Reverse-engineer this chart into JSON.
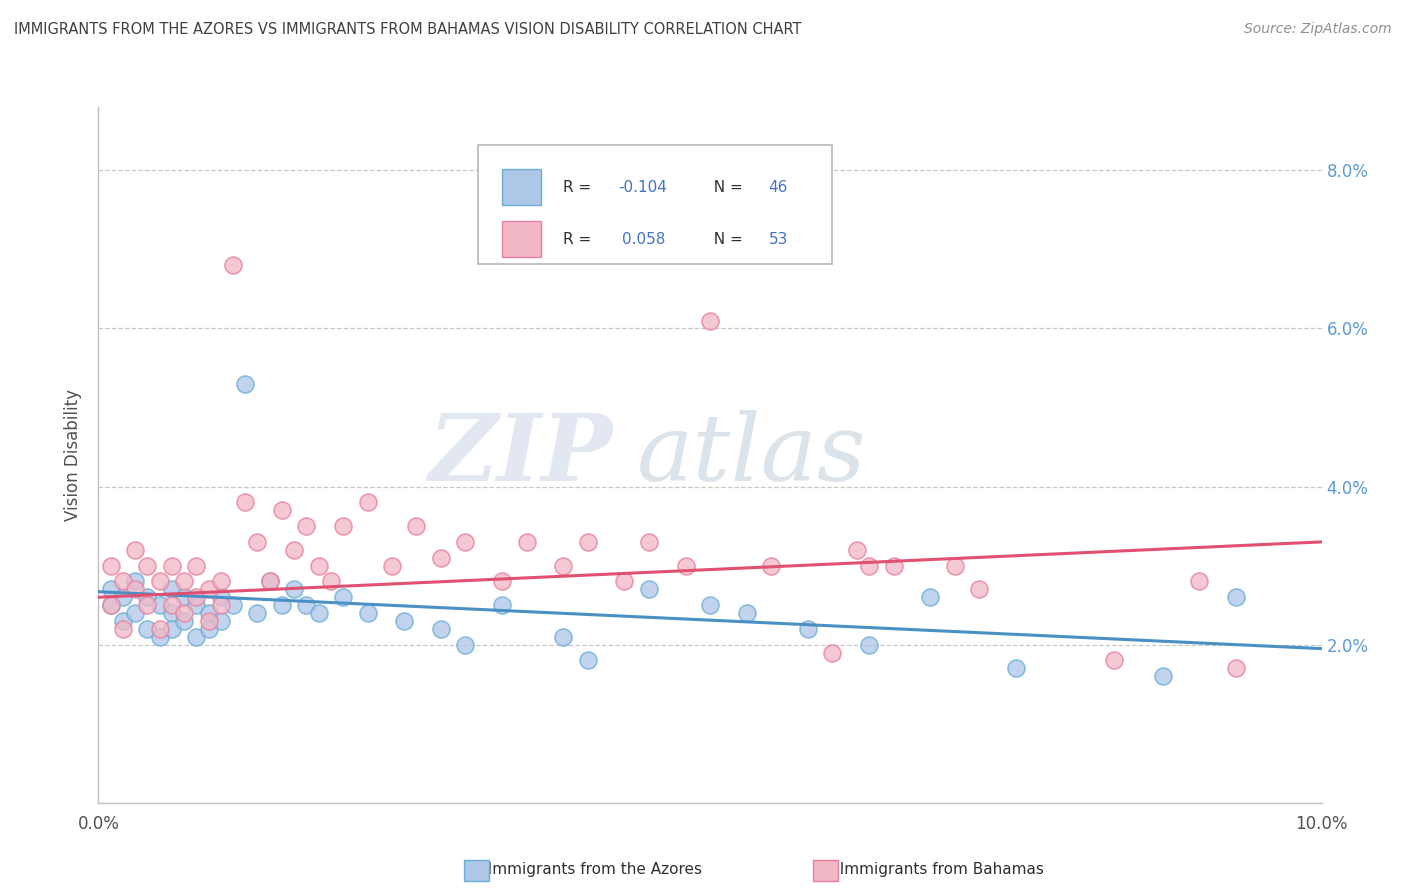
{
  "title": "IMMIGRANTS FROM THE AZORES VS IMMIGRANTS FROM BAHAMAS VISION DISABILITY CORRELATION CHART",
  "source": "Source: ZipAtlas.com",
  "ylabel": "Vision Disability",
  "xlim": [
    0.0,
    0.1
  ],
  "ylim": [
    0.0,
    0.088
  ],
  "yticks": [
    0.02,
    0.04,
    0.06,
    0.08
  ],
  "ytick_labels": [
    "2.0%",
    "4.0%",
    "6.0%",
    "8.0%"
  ],
  "legend_r_blue": "-0.104",
  "legend_n_blue": "46",
  "legend_r_pink": "0.058",
  "legend_n_pink": "53",
  "blue_color": "#aec6e8",
  "pink_color": "#f2b8c6",
  "blue_edge_color": "#6aaed6",
  "pink_edge_color": "#e87fa0",
  "blue_line_color": "#4a90c4",
  "pink_line_color": "#e05070",
  "title_color": "#404040",
  "source_color": "#909090",
  "watermark_zip": "ZIP",
  "watermark_atlas": "atlas",
  "blue_scatter_x": [
    0.001,
    0.001,
    0.002,
    0.002,
    0.003,
    0.003,
    0.004,
    0.004,
    0.005,
    0.005,
    0.006,
    0.006,
    0.006,
    0.007,
    0.007,
    0.008,
    0.008,
    0.009,
    0.009,
    0.01,
    0.01,
    0.011,
    0.012,
    0.013,
    0.014,
    0.015,
    0.016,
    0.017,
    0.018,
    0.02,
    0.022,
    0.025,
    0.028,
    0.03,
    0.033,
    0.038,
    0.04,
    0.045,
    0.05,
    0.053,
    0.058,
    0.063,
    0.068,
    0.075,
    0.087,
    0.093
  ],
  "blue_scatter_y": [
    0.027,
    0.025,
    0.026,
    0.023,
    0.028,
    0.024,
    0.026,
    0.022,
    0.025,
    0.021,
    0.027,
    0.024,
    0.022,
    0.026,
    0.023,
    0.025,
    0.021,
    0.024,
    0.022,
    0.026,
    0.023,
    0.025,
    0.053,
    0.024,
    0.028,
    0.025,
    0.027,
    0.025,
    0.024,
    0.026,
    0.024,
    0.023,
    0.022,
    0.02,
    0.025,
    0.021,
    0.018,
    0.027,
    0.025,
    0.024,
    0.022,
    0.02,
    0.026,
    0.017,
    0.016,
    0.026
  ],
  "pink_scatter_x": [
    0.001,
    0.001,
    0.002,
    0.002,
    0.003,
    0.003,
    0.004,
    0.004,
    0.005,
    0.005,
    0.006,
    0.006,
    0.007,
    0.007,
    0.008,
    0.008,
    0.009,
    0.009,
    0.01,
    0.01,
    0.011,
    0.012,
    0.013,
    0.014,
    0.015,
    0.016,
    0.017,
    0.018,
    0.019,
    0.02,
    0.022,
    0.024,
    0.026,
    0.028,
    0.03,
    0.033,
    0.035,
    0.038,
    0.04,
    0.043,
    0.045,
    0.048,
    0.05,
    0.055,
    0.06,
    0.062,
    0.063,
    0.065,
    0.07,
    0.072,
    0.083,
    0.09,
    0.093
  ],
  "pink_scatter_y": [
    0.03,
    0.025,
    0.028,
    0.022,
    0.032,
    0.027,
    0.03,
    0.025,
    0.028,
    0.022,
    0.03,
    0.025,
    0.028,
    0.024,
    0.03,
    0.026,
    0.027,
    0.023,
    0.028,
    0.025,
    0.068,
    0.038,
    0.033,
    0.028,
    0.037,
    0.032,
    0.035,
    0.03,
    0.028,
    0.035,
    0.038,
    0.03,
    0.035,
    0.031,
    0.033,
    0.028,
    0.033,
    0.03,
    0.033,
    0.028,
    0.033,
    0.03,
    0.061,
    0.03,
    0.019,
    0.032,
    0.03,
    0.03,
    0.03,
    0.027,
    0.018,
    0.028,
    0.017
  ],
  "blue_trend_x": [
    0.0,
    0.1
  ],
  "blue_trend_y": [
    0.0267,
    0.0195
  ],
  "pink_trend_x": [
    0.0,
    0.1
  ],
  "pink_trend_y": [
    0.026,
    0.033
  ]
}
